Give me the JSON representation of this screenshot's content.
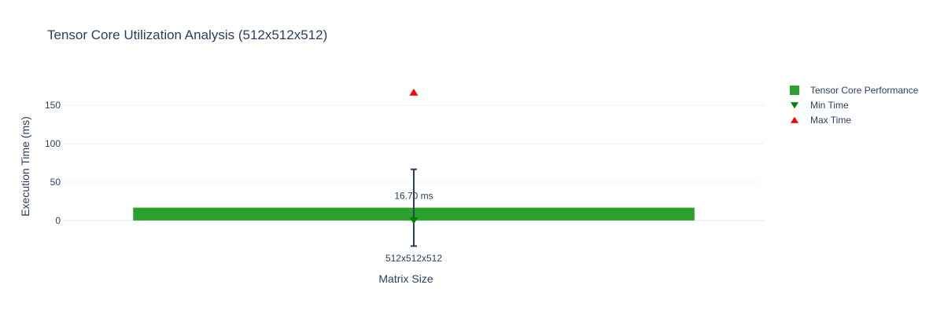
{
  "chart_data": {
    "type": "bar",
    "title": "Tensor Core Utilization Analysis (512x512x512)",
    "xlabel": "Matrix Size",
    "ylabel": "Execution Time (ms)",
    "categories": [
      "512x512x512"
    ],
    "ylim": [
      -40,
      185
    ],
    "yticks": [
      0,
      50,
      100,
      150
    ],
    "grid": true,
    "legend_position": "top-right",
    "series": [
      {
        "name": "Tensor Core Performance",
        "type": "bar",
        "values": [
          16.7
        ],
        "error": [
          50
        ],
        "data_labels": [
          "16.70 ms"
        ],
        "color": "#2ca02c",
        "error_color": "#2a3f5f"
      },
      {
        "name": "Min Time",
        "type": "scatter",
        "marker": "triangle-down",
        "values": [
          0
        ],
        "color": "#008000"
      },
      {
        "name": "Max Time",
        "type": "scatter",
        "marker": "triangle-up",
        "values": [
          167
        ],
        "color": "#ff0000"
      }
    ]
  }
}
